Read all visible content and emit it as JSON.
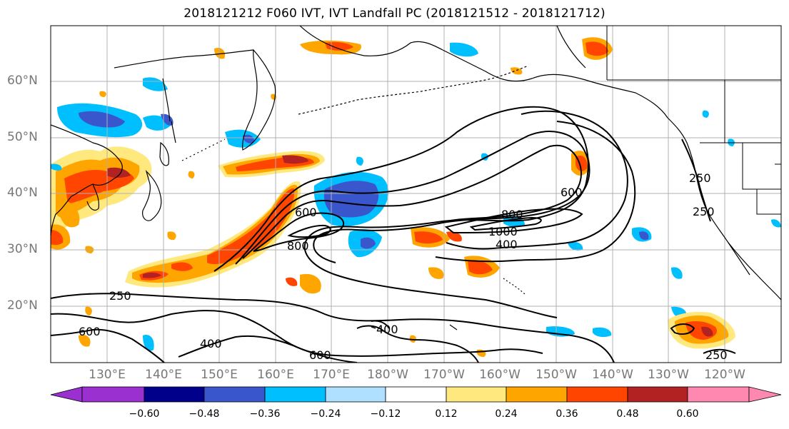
{
  "title": "2018121212 F060 IVT, IVT Landfall PC (2018121512 - 2018121712)",
  "lat_labels": [
    "60°N",
    "50°N",
    "40°N",
    "30°N",
    "20°N"
  ],
  "lon_labels": [
    "130°E",
    "140°E",
    "150°E",
    "160°E",
    "170°E",
    "180°W",
    "170°W",
    "160°W",
    "150°W",
    "140°W",
    "130°W",
    "120°W"
  ],
  "contour_labels": {
    "c250_west": "250",
    "c600_west": "600",
    "c400_south": "400",
    "c600_south": "600",
    "c400_mid": "400",
    "c600_jet": "600",
    "c800_jet": "800",
    "c800_east": "800",
    "c1000": "1000",
    "c400_east": "400",
    "c600_east": "600",
    "c250_coast1": "250",
    "c250_coast2": "250",
    "c250_se": "250"
  },
  "colorbar": {
    "ticks": [
      "−0.60",
      "−0.48",
      "−0.36",
      "−0.24",
      "−0.12",
      "0.12",
      "0.24",
      "0.36",
      "0.48",
      "0.60"
    ],
    "colors": [
      "#9b30d0",
      "#00008b",
      "#3a56cc",
      "#00bfff",
      "#b0e0ff",
      "#ffffff",
      "#ffe97f",
      "#ffa500",
      "#ff4500",
      "#b22222",
      "#ff88b0"
    ]
  },
  "colors": {
    "pos_weak": "#ffe97f",
    "pos_mid": "#ffa500",
    "pos_strong": "#ff4500",
    "pos_max": "#b22222",
    "neg_weak": "#b0e0ff",
    "neg_mid": "#00bfff",
    "neg_strong": "#3a56cc"
  }
}
